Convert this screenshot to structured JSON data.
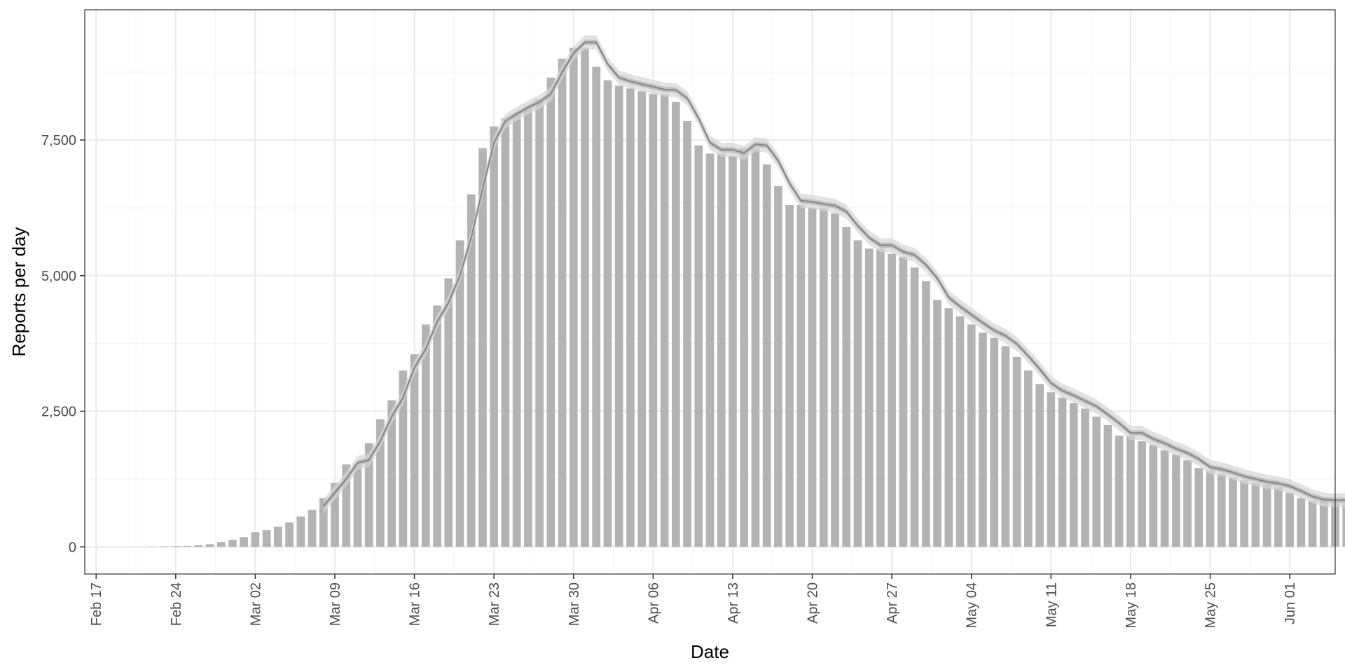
{
  "chart_data": {
    "type": "bar",
    "title": "",
    "xlabel": "Date",
    "ylabel": "Reports per day",
    "x_tick_labels": [
      "Feb 17",
      "Feb 24",
      "Mar 02",
      "Mar 09",
      "Mar 16",
      "Mar 23",
      "Mar 30",
      "Apr 06",
      "Apr 13",
      "Apr 20",
      "Apr 27",
      "May 04",
      "May 11",
      "May 18",
      "May 25",
      "Jun 01"
    ],
    "x_tick_dates": [
      "2020-02-17",
      "2020-02-24",
      "2020-03-02",
      "2020-03-09",
      "2020-03-16",
      "2020-03-23",
      "2020-03-30",
      "2020-04-06",
      "2020-04-13",
      "2020-04-20",
      "2020-04-27",
      "2020-05-04",
      "2020-05-11",
      "2020-05-18",
      "2020-05-25",
      "2020-06-01"
    ],
    "x_range": [
      "2020-02-16",
      "2020-06-05"
    ],
    "y_tick_labels": [
      "0",
      "2,500",
      "5,000",
      "7,500"
    ],
    "y_ticks": [
      0,
      2500,
      5000,
      7500
    ],
    "ylim": [
      -500,
      9900
    ],
    "grid": true,
    "colors": {
      "bar": "#b3b3b3",
      "line": "#888888",
      "band_outer": "#d6d6d6",
      "band_inner": "#bcbcbc",
      "grid_major": "#ebebeb",
      "grid_minor": "#f5f5f5",
      "panel_border": "#333333"
    },
    "bars": {
      "start_date": "2020-02-22",
      "values": [
        5,
        8,
        12,
        18,
        30,
        50,
        90,
        130,
        180,
        270,
        310,
        370,
        450,
        560,
        680,
        900,
        1180,
        1520,
        1520,
        1910,
        2350,
        2700,
        3250,
        3550,
        4100,
        4450,
        4950,
        5650,
        6500,
        7350,
        7750,
        7900,
        8000,
        8100,
        8250,
        8650,
        9000,
        9200,
        9200,
        8850,
        8600,
        8500,
        8450,
        8400,
        8350,
        8350,
        8200,
        7850,
        7400,
        7250,
        7250,
        7200,
        7350,
        7350,
        7050,
        6650,
        6300,
        6300,
        6250,
        6250,
        6150,
        5900,
        5650,
        5500,
        5500,
        5400,
        5350,
        5150,
        4900,
        4550,
        4400,
        4250,
        4100,
        3950,
        3850,
        3700,
        3500,
        3250,
        3000,
        2850,
        2750,
        2650,
        2550,
        2400,
        2250,
        2050,
        2050,
        1950,
        1880,
        1780,
        1700,
        1600,
        1450,
        1400,
        1350,
        1280,
        1230,
        1180,
        1150,
        1100,
        1000,
        900,
        850,
        850,
        850,
        830,
        750
      ]
    },
    "smoothed": {
      "start_date": "2020-03-08",
      "values": [
        750,
        1000,
        1250,
        1550,
        1600,
        1950,
        2400,
        2750,
        3300,
        3650,
        4150,
        4500,
        5000,
        5700,
        6600,
        7450,
        7850,
        7980,
        8100,
        8200,
        8350,
        8750,
        9100,
        9300,
        9300,
        8900,
        8650,
        8580,
        8530,
        8480,
        8430,
        8420,
        8270,
        7900,
        7450,
        7320,
        7320,
        7260,
        7420,
        7400,
        7120,
        6700,
        6380,
        6360,
        6320,
        6290,
        6180,
        5920,
        5700,
        5560,
        5560,
        5440,
        5380,
        5200,
        4950,
        4600,
        4430,
        4280,
        4130,
        3990,
        3890,
        3740,
        3520,
        3280,
        3020,
        2880,
        2790,
        2690,
        2590,
        2440,
        2280,
        2100,
        2100,
        1990,
        1910,
        1810,
        1730,
        1620,
        1470,
        1430,
        1370,
        1300,
        1250,
        1200,
        1170,
        1120,
        1030,
        930,
        870,
        860,
        860,
        840,
        790
      ],
      "band_inner_halfwidth": 50,
      "band_outer_halfwidth": 130
    }
  }
}
